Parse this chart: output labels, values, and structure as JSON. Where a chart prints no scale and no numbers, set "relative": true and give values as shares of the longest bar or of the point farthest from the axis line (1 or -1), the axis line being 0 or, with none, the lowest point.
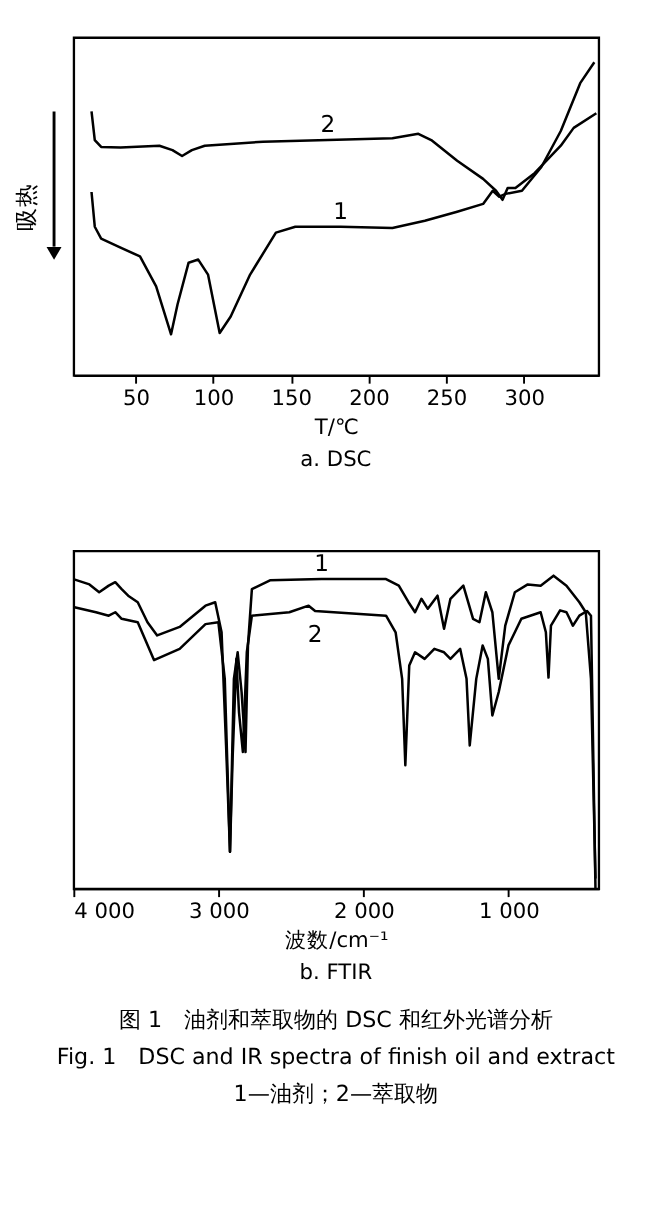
{
  "chart_data": [
    {
      "type": "line",
      "title": "a. DSC",
      "xlabel": "T/℃",
      "ylabel": "吸热",
      "relative": true,
      "xlim": [
        10,
        348
      ],
      "xticks": [
        50,
        100,
        150,
        200,
        250,
        300
      ],
      "series": [
        {
          "name": "1",
          "color": "#000000",
          "x": [
            21.7,
            23.8,
            27.9,
            40.4,
            52.9,
            63.3,
            72.9,
            77.1,
            84.2,
            90.4,
            96.7,
            104.2,
            111.3,
            123.8,
            140.4,
            152.9,
            182.1,
            215.4,
            236.3,
            257.1,
            273.8,
            280,
            284.2,
            288.3,
            298.8,
            311.3,
            323.8,
            336.3,
            345.4
          ],
          "values": [
            0.585,
            0.474,
            0.436,
            0.407,
            0.379,
            0.283,
            0.13,
            0.226,
            0.359,
            0.369,
            0.321,
            0.134,
            0.187,
            0.321,
            0.455,
            0.474,
            0.474,
            0.47,
            0.493,
            0.522,
            0.547,
            0.589,
            0.57,
            0.579,
            0.589,
            0.665,
            0.78,
            0.933,
            1.0
          ]
        },
        {
          "name": "2",
          "color": "#000000",
          "x": [
            21.7,
            23.8,
            27.9,
            40.4,
            65.4,
            73.8,
            80,
            86.3,
            94.6,
            132.1,
            173.8,
            215.4,
            232.1,
            240.4,
            257.1,
            273.8,
            282.1,
            286.3,
            289.6,
            294.6,
            307.1,
            323.8,
            332.1,
            346.7
          ],
          "values": [
            0.843,
            0.751,
            0.729,
            0.727,
            0.733,
            0.719,
            0.7,
            0.719,
            0.733,
            0.746,
            0.751,
            0.757,
            0.771,
            0.751,
            0.685,
            0.627,
            0.589,
            0.56,
            0.598,
            0.598,
            0.646,
            0.733,
            0.79,
            0.837
          ]
        }
      ]
    },
    {
      "type": "line",
      "title": "b. FTIR",
      "xlabel": "波数/cm⁻¹",
      "relative": true,
      "xlim": [
        4000,
        380
      ],
      "xticks": [
        {
          "value": 4000,
          "label": "4 000"
        },
        {
          "value": 3000,
          "label": "3 000"
        },
        {
          "value": 2000,
          "label": "2 000"
        },
        {
          "value": 1000,
          "label": "1 000"
        }
      ],
      "annotations": [
        "图 1　油剂和萃取物的 DSC 和红外光谱分析",
        "Fig. 1　DSC and IR spectra of finish oil and extract",
        "1—油剂；2—萃取物"
      ],
      "series": [
        {
          "name": "1",
          "color": "#000000",
          "x": [
            4000,
            3889,
            3822,
            3756,
            3711,
            3667,
            3622,
            3556,
            3489,
            3422,
            3267,
            3089,
            3022,
            2978,
            2947,
            2920,
            2893,
            2867,
            2840,
            2813,
            2796,
            2769,
            2644,
            2289,
            1844,
            1756,
            1689,
            1644,
            1600,
            1556,
            1489,
            1444,
            1400,
            1311,
            1244,
            1200,
            1156,
            1111,
            1067,
            1022,
            956,
            867,
            778,
            689,
            600,
            511,
            467,
            431,
            400
          ],
          "values": [
            0.989,
            0.972,
            0.947,
            0.968,
            0.979,
            0.957,
            0.936,
            0.915,
            0.851,
            0.809,
            0.836,
            0.904,
            0.915,
            0.819,
            0.457,
            0.117,
            0.67,
            0.755,
            0.628,
            0.436,
            0.777,
            0.957,
            0.985,
            0.989,
            0.989,
            0.968,
            0.915,
            0.883,
            0.926,
            0.894,
            0.936,
            0.83,
            0.926,
            0.968,
            0.862,
            0.851,
            0.947,
            0.883,
            0.67,
            0.84,
            0.947,
            0.972,
            0.968,
            1.0,
            0.968,
            0.915,
            0.883,
            0.67,
            0.032
          ]
        },
        {
          "name": "2",
          "color": "#000000",
          "x": [
            4000,
            3844,
            3756,
            3711,
            3667,
            3556,
            3444,
            3267,
            3089,
            3000,
            2956,
            2920,
            2902,
            2876,
            2858,
            2831,
            2804,
            2769,
            2511,
            2378,
            2333,
            1844,
            1778,
            1733,
            1711,
            1684,
            1644,
            1578,
            1511,
            1444,
            1400,
            1333,
            1289,
            1267,
            1222,
            1178,
            1142,
            1111,
            1067,
            1000,
            911,
            778,
            742,
            724,
            707,
            644,
            600,
            578,
            556,
            511,
            458,
            431,
            400
          ],
          "values": [
            0.9,
            0.883,
            0.872,
            0.883,
            0.862,
            0.851,
            0.73,
            0.766,
            0.845,
            0.851,
            0.67,
            0.117,
            0.415,
            0.734,
            0.564,
            0.436,
            0.755,
            0.872,
            0.883,
            0.904,
            0.887,
            0.872,
            0.819,
            0.67,
            0.394,
            0.713,
            0.755,
            0.734,
            0.766,
            0.755,
            0.734,
            0.766,
            0.67,
            0.457,
            0.67,
            0.777,
            0.734,
            0.553,
            0.628,
            0.777,
            0.862,
            0.883,
            0.819,
            0.674,
            0.84,
            0.889,
            0.883,
            0.862,
            0.84,
            0.872,
            0.887,
            0.872,
            0.0
          ]
        }
      ]
    }
  ]
}
